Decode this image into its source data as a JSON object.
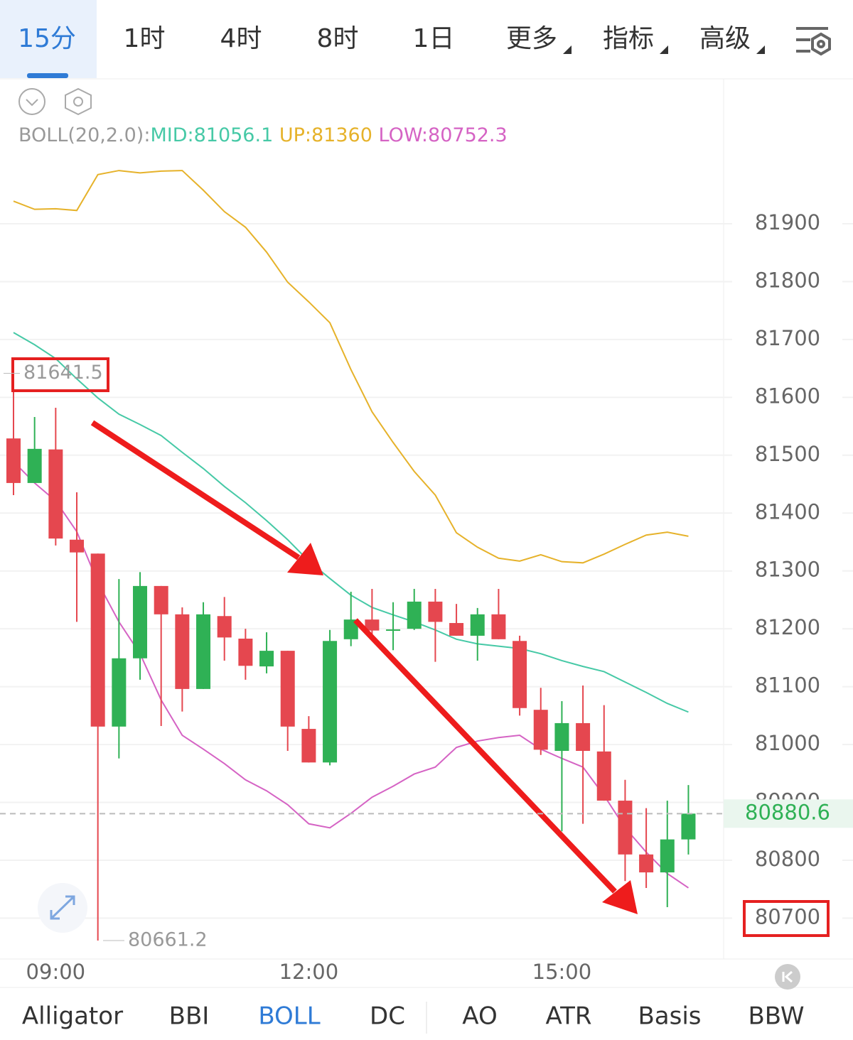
{
  "timeframe_tabs": [
    "15分",
    "1时",
    "4时",
    "8时",
    "1日"
  ],
  "menu_tabs": [
    "更多",
    "指标",
    "高级"
  ],
  "indicator_tabs": [
    "Alligator",
    "BBI",
    "BOLL",
    "DC",
    "AO",
    "ATR",
    "Basis",
    "BBW"
  ],
  "legend": {
    "name": "BOLL(20,2.0):"
  },
  "chart_data": {
    "type": "candlestick",
    "categories": [
      null,
      null,
      "09:00",
      null,
      null,
      null,
      null,
      null,
      null,
      null,
      null,
      null,
      null,
      null,
      "12:00",
      null,
      null,
      null,
      null,
      null,
      null,
      null,
      null,
      null,
      null,
      null,
      "15:00",
      null,
      null,
      null,
      null,
      null,
      null
    ],
    "open": [
      81529,
      81452,
      81510,
      81354,
      81330,
      81031,
      81149,
      81274,
      81225,
      81096,
      81222,
      81183,
      81135,
      81162,
      81027,
      80969,
      81182,
      81216,
      81197,
      81200,
      81247,
      81210,
      81188,
      81225,
      81179,
      81060,
      80989,
      81037,
      80988,
      80903,
      80810,
      80779,
      80836
    ],
    "high": [
      81641.5,
      81566,
      81582,
      81436,
      81330,
      81286,
      81298,
      81274,
      81237,
      81246,
      81255,
      81200,
      81194,
      81162,
      81049,
      81198,
      81264,
      81269,
      81246,
      81269,
      81269,
      81243,
      81236,
      81269,
      81188,
      81098,
      81075,
      81102,
      81068,
      80939,
      80890,
      80903,
      80930
    ],
    "low": [
      81431,
      81452,
      81344,
      81212,
      80661.2,
      80976,
      81112,
      81032,
      81057,
      81096,
      81145,
      81112,
      81123,
      80989,
      80969,
      80964,
      81170,
      81188,
      81163,
      81198,
      81143,
      81188,
      81145,
      81182,
      81050,
      80982,
      80850,
      80863,
      80903,
      80764,
      80752,
      80719,
      80810
    ],
    "close": [
      81452,
      81511,
      81356,
      81332,
      81031,
      81149,
      81274,
      81225,
      81096,
      81225,
      81185,
      81136,
      81162,
      81031,
      80969,
      81179,
      81216,
      81197,
      81199,
      81247,
      81212,
      81188,
      81225,
      81182,
      81063,
      80991,
      81037,
      80989,
      80903,
      80810,
      80779,
      80836,
      80880.6
    ],
    "up_color": "#2fb155",
    "down_color": "#e5474f",
    "lines": [
      {
        "label": "MID:",
        "last": 81056.1,
        "color": "#46c9a6",
        "values": [
          81712,
          81691,
          81667,
          81632,
          81599,
          81571,
          81553,
          81534,
          81505,
          81477,
          81446,
          81418,
          81387,
          81354,
          81317,
          81287,
          81258,
          81237,
          81224,
          81212,
          81198,
          81182,
          81174,
          81170,
          81166,
          81157,
          81145,
          81135,
          81126,
          81108,
          81090,
          81071,
          81056.1
        ]
      },
      {
        "label": "UP:",
        "last": 81360.0,
        "color": "#e6b22a",
        "values": [
          81939,
          81925,
          81926,
          81923,
          81985,
          81992,
          81988,
          81991,
          81992,
          81958,
          81921,
          81894,
          81851,
          81799,
          81765,
          81729,
          81648,
          81575,
          81522,
          81472,
          81431,
          81366,
          81341,
          81322,
          81317,
          81328,
          81316,
          81314,
          81329,
          81346,
          81362,
          81367,
          81360
        ]
      },
      {
        "label": "LOW:",
        "last": 80752.3,
        "color": "#d563c4",
        "values": [
          81489,
          81452,
          81421,
          81368,
          81280,
          81212,
          81157,
          81077,
          81016,
          80992,
          80967,
          80939,
          80920,
          80896,
          80863,
          80856,
          80881,
          80909,
          80928,
          80949,
          80961,
          80995,
          81006,
          81012,
          81016,
          80992,
          80976,
          80961,
          80912,
          80856,
          80814,
          80777,
          80752.3
        ]
      }
    ],
    "ylim": [
      80629.3,
      82151.7
    ],
    "yticks": [
      80700,
      80800,
      80900,
      81000,
      81100,
      81200,
      81300,
      81400,
      81500,
      81600,
      81700,
      81800,
      81900
    ],
    "grid": true,
    "high_label": 81641.5,
    "low_label": 80661.2,
    "last_price": 80880.6
  }
}
